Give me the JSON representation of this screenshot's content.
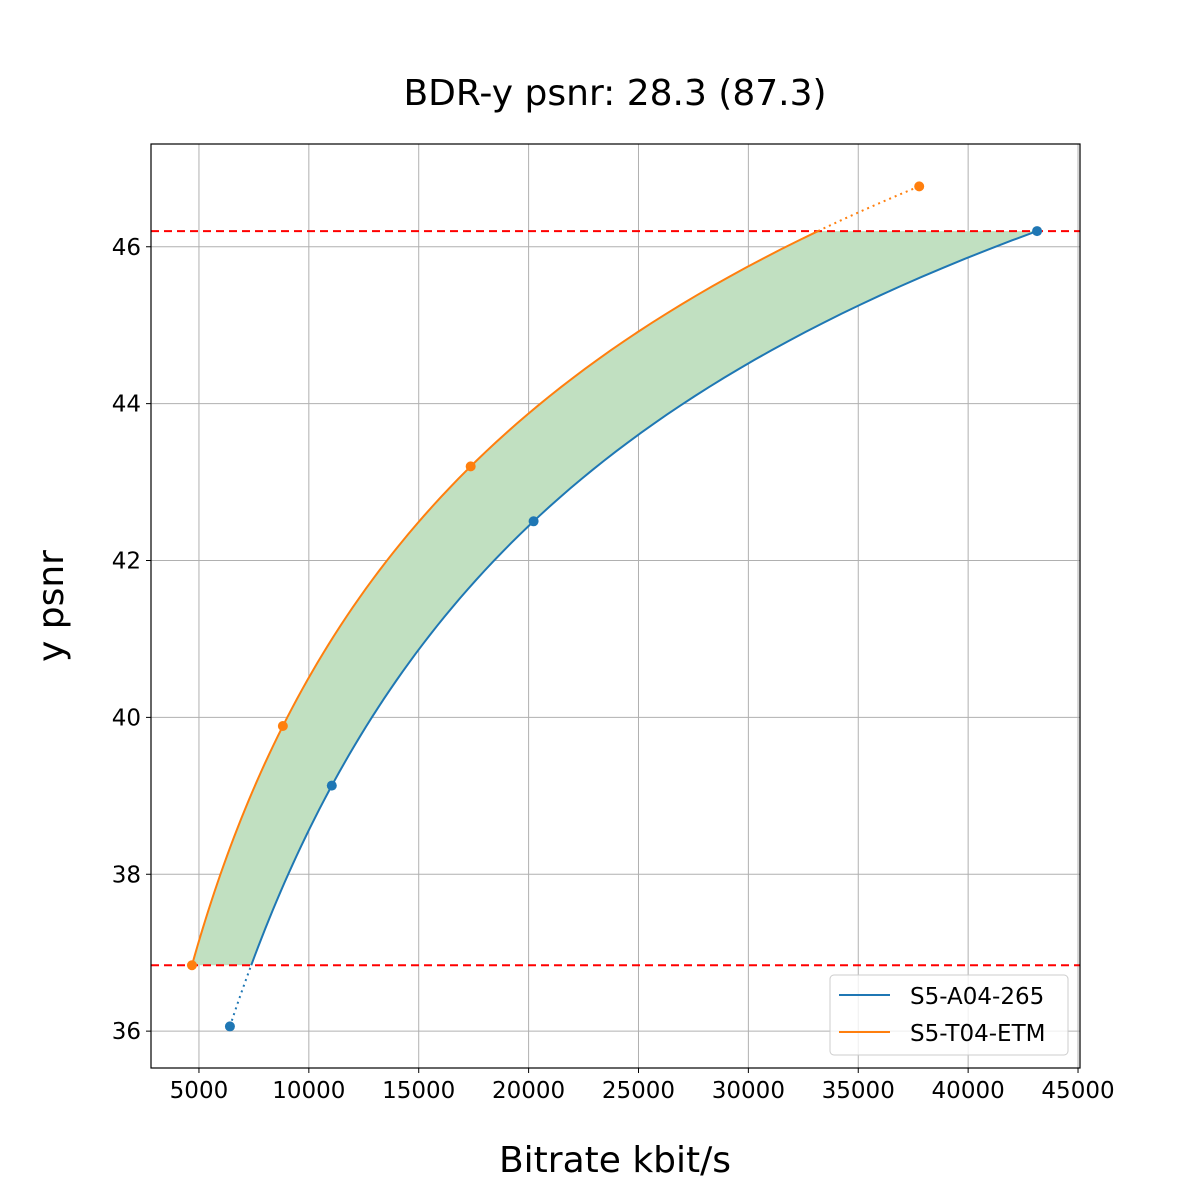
{
  "chart_data": {
    "type": "line",
    "title": "BDR-y psnr: 28.3 (87.3)",
    "xlabel": "Bitrate kbit/s",
    "ylabel": "y psnr",
    "xlim": [
      2818,
      45090
    ],
    "ylim": [
      35.53,
      47.31
    ],
    "xticks": [
      5000,
      10000,
      15000,
      20000,
      25000,
      30000,
      35000,
      40000,
      45000
    ],
    "yticks": [
      36,
      38,
      40,
      42,
      44,
      46
    ],
    "grid": true,
    "legend_position": "bottom-right",
    "series": [
      {
        "name": "S5-A04-265",
        "color": "#1f77b4",
        "x": [
          6409,
          11045,
          20227,
          43136
        ],
        "y": [
          36.06,
          39.13,
          42.5,
          46.2
        ]
      },
      {
        "name": "S5-T04-ETM",
        "color": "#ff7f0e",
        "x": [
          4682,
          8818,
          17364,
          37773
        ],
        "y": [
          36.84,
          39.89,
          43.2,
          46.77
        ]
      }
    ],
    "reference_lines": {
      "color": "#ff0000",
      "y": [
        46.2,
        36.84
      ]
    },
    "fill_color": "#c1e0c1"
  }
}
